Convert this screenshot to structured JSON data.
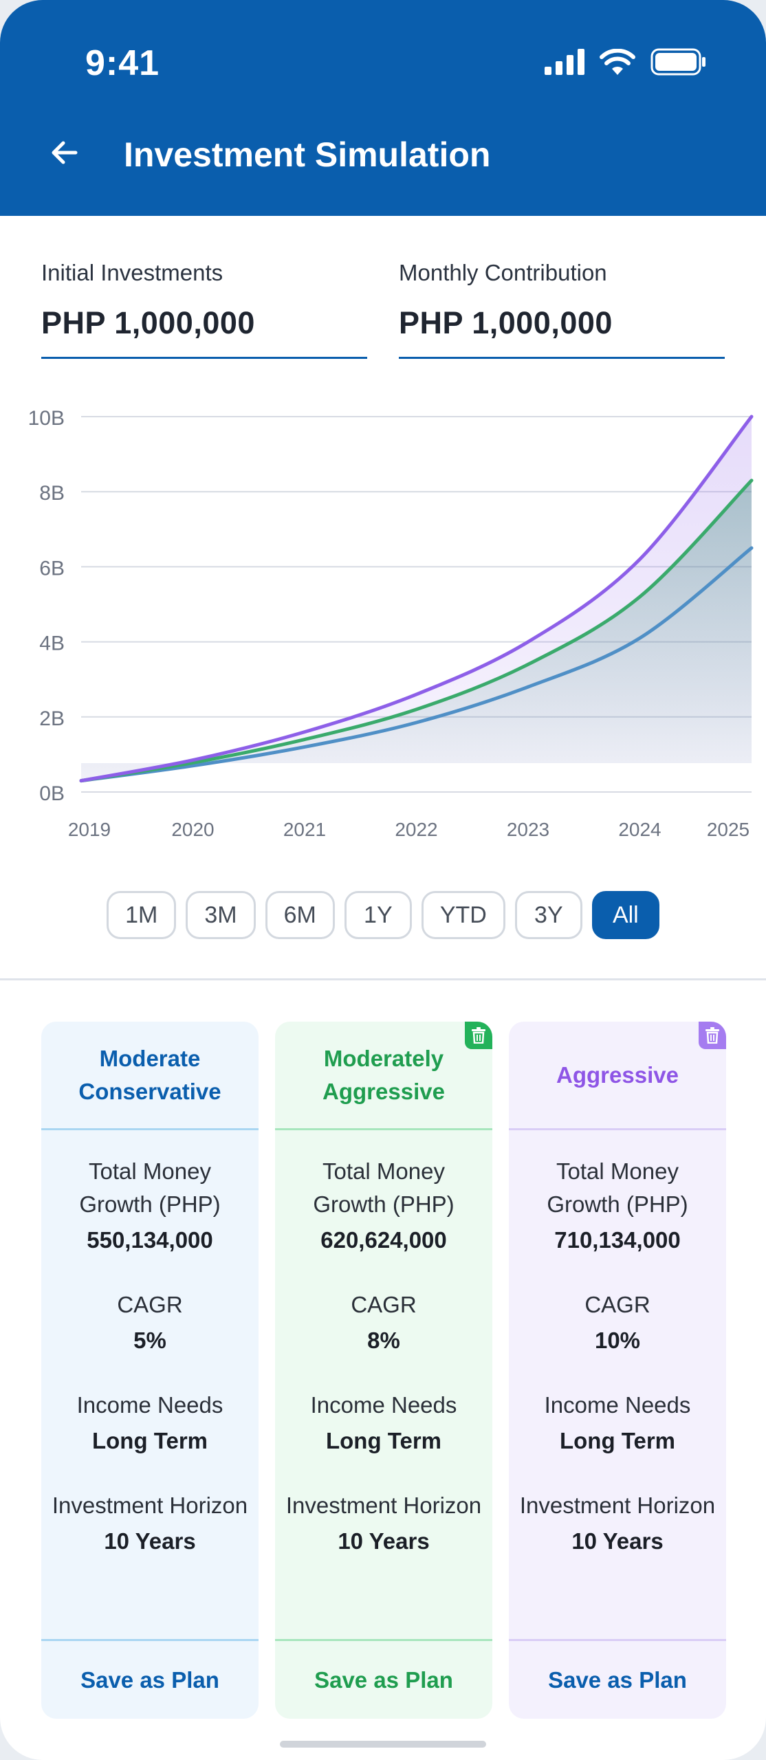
{
  "status_bar": {
    "time": "9:41"
  },
  "header": {
    "title": "Investment Simulation"
  },
  "inputs": {
    "initial": {
      "label": "Initial Investments",
      "value": "PHP 1,000,000"
    },
    "monthly": {
      "label": "Monthly Contribution",
      "value": "PHP 1,000,000"
    }
  },
  "chart_data": {
    "type": "line",
    "title": "",
    "x": [
      "2019",
      "2020",
      "2021",
      "2022",
      "2023",
      "2024",
      "2025"
    ],
    "y_ticks": [
      "0B",
      "2B",
      "4B",
      "6B",
      "8B",
      "10B"
    ],
    "ylim": [
      0,
      10
    ],
    "y_unit": "B",
    "series": [
      {
        "name": "Moderate Conservative",
        "color": "#4f8fc6",
        "values": [
          0.3,
          0.7,
          1.2,
          1.85,
          2.8,
          4.1,
          6.5
        ]
      },
      {
        "name": "Moderately Aggressive",
        "color": "#3aaa6c",
        "values": [
          0.3,
          0.78,
          1.4,
          2.2,
          3.4,
          5.2,
          8.3
        ]
      },
      {
        "name": "Aggressive",
        "color": "#8d5fe8",
        "values": [
          0.3,
          0.85,
          1.6,
          2.6,
          4.0,
          6.2,
          10.0
        ]
      }
    ]
  },
  "ranges": [
    {
      "label": "1M",
      "active": false
    },
    {
      "label": "3M",
      "active": false
    },
    {
      "label": "6M",
      "active": false
    },
    {
      "label": "1Y",
      "active": false
    },
    {
      "label": "YTD",
      "active": false
    },
    {
      "label": "3Y",
      "active": false
    },
    {
      "label": "All",
      "active": true
    }
  ],
  "labels": {
    "total_growth": "Total Money Growth (PHP)",
    "cagr": "CAGR",
    "income_needs": "Income Needs",
    "horizon": "Investment Horizon",
    "save": "Save as Plan"
  },
  "plans": [
    {
      "name": "Moderate Conservative",
      "growth": "550,134,000",
      "cagr": "5%",
      "income": "Long Term",
      "horizon": "10 Years"
    },
    {
      "name": "Moderately Aggressive",
      "growth": "620,624,000",
      "cagr": "8%",
      "income": "Long Term",
      "horizon": "10 Years"
    },
    {
      "name": "Aggressive",
      "growth": "710,134,000",
      "cagr": "10%",
      "income": "Long Term",
      "horizon": "10 Years"
    }
  ],
  "colors": {
    "brand": "#0a5ead",
    "green": "#1f9d4f",
    "purple": "#8e55e6"
  }
}
